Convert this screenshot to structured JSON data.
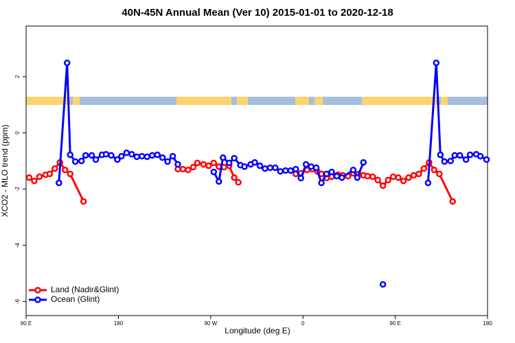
{
  "chart_data": {
    "type": "line",
    "title": "40N-45N Annual Mean (Ver 10)   2015-01-01 to 2020-12-18",
    "xlabel": "Longitude (deg E)",
    "ylabel": "XCO2 - MLO trend (ppm)",
    "xlim": [
      90,
      540
    ],
    "xticks": [
      {
        "value": 90,
        "label": "90 E"
      },
      {
        "value": 180,
        "label": "180"
      },
      {
        "value": 270,
        "label": "90 W"
      },
      {
        "value": 360,
        "label": "0"
      },
      {
        "value": 450,
        "label": "90 E"
      },
      {
        "value": 540,
        "label": "180"
      }
    ],
    "ylim": [
      -6.5,
      3.8
    ],
    "yticks": [
      -6,
      -4,
      -2,
      0,
      2
    ],
    "legend": "bottom-left",
    "series": [
      {
        "name": "Land (Nadir&Glint)",
        "color": "#ff0000",
        "x": [
          93,
          98,
          103,
          109,
          113,
          118,
          123,
          128,
          133,
          146,
          null,
          238,
          243,
          248,
          253,
          257,
          263,
          268,
          273,
          278,
          283,
          288,
          293,
          297,
          null,
          353,
          358,
          364,
          369,
          374,
          378,
          383,
          388,
          394,
          399,
          404,
          409,
          414,
          419,
          423,
          428,
          433,
          438,
          443,
          448,
          453,
          458,
          463,
          468,
          473,
          478,
          483,
          488,
          493,
          506
        ],
        "values": [
          -1.59,
          -1.71,
          -1.56,
          -1.49,
          -1.46,
          -1.27,
          -1.05,
          -1.32,
          -1.46,
          -2.44,
          null,
          -1.29,
          -1.29,
          -1.32,
          -1.22,
          -1.07,
          -1.12,
          -1.17,
          -1.07,
          -1.2,
          -1.22,
          -1.17,
          -1.59,
          -1.76,
          null,
          -1.46,
          -1.44,
          -1.32,
          -1.29,
          -1.37,
          -1.46,
          -1.61,
          -1.56,
          -1.49,
          -1.51,
          -1.54,
          -1.44,
          -1.46,
          -1.51,
          -1.54,
          -1.56,
          -1.68,
          -1.88,
          -1.68,
          -1.56,
          -1.59,
          -1.71,
          -1.59,
          -1.51,
          -1.46,
          -1.27,
          -1.05,
          -1.32,
          -1.46,
          -2.44
        ]
      },
      {
        "name": "Ocean (Glint)",
        "color": "#0000ff",
        "x": [
          122,
          130,
          133,
          138,
          144,
          148,
          154,
          158,
          164,
          168,
          173,
          179,
          183,
          188,
          193,
          198,
          203,
          208,
          213,
          218,
          223,
          228,
          233,
          238,
          null,
          273,
          278,
          282,
          288,
          293,
          299,
          303,
          309,
          313,
          318,
          323,
          328,
          333,
          338,
          343,
          348,
          353,
          358,
          363,
          368,
          373,
          378,
          383,
          388,
          393,
          398,
          409,
          413,
          419,
          null,
          438,
          null,
          482,
          490,
          494,
          498,
          504,
          508,
          513,
          519,
          523,
          529,
          533,
          539
        ],
        "values": [
          -1.78,
          2.49,
          -0.78,
          -1.02,
          -1.0,
          -0.8,
          -0.8,
          -0.95,
          -0.78,
          -0.76,
          -0.8,
          -0.95,
          -0.83,
          -0.71,
          -0.76,
          -0.85,
          -0.83,
          -0.85,
          -0.8,
          -0.78,
          -0.88,
          -1.02,
          -0.83,
          -1.12,
          null,
          -1.39,
          -1.73,
          -0.88,
          -1.07,
          -0.9,
          -1.15,
          -1.2,
          -1.12,
          -1.05,
          -1.17,
          -1.27,
          -1.24,
          -1.24,
          -1.37,
          -1.34,
          -1.34,
          -1.29,
          -1.61,
          -1.12,
          -1.2,
          -1.24,
          -1.78,
          -1.46,
          -1.39,
          -1.54,
          -1.59,
          -1.32,
          -1.59,
          -1.05,
          null,
          -5.39,
          null,
          -1.78,
          2.49,
          -0.78,
          -1.02,
          -1.0,
          -0.8,
          -0.8,
          -0.95,
          -0.78,
          -0.76,
          -0.83,
          -0.95
        ]
      }
    ]
  }
}
